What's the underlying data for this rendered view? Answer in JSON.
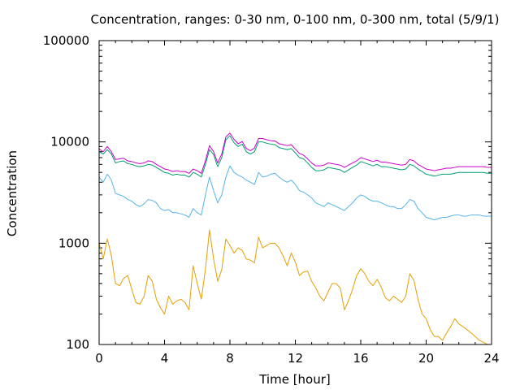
{
  "chart_data": {
    "type": "line",
    "title": "Concentration, ranges: 0-30 nm, 0-100 nm, 0-300 nm, total (5/9/1)",
    "xlabel": "Time [hour]",
    "ylabel": "Concentration",
    "xlim": [
      0,
      24
    ],
    "ylim": [
      100,
      100000
    ],
    "yscale": "log",
    "grid": false,
    "xticks": [
      0,
      4,
      8,
      12,
      16,
      20,
      24
    ],
    "xtick_labels": [
      "0",
      "4",
      "8",
      "12",
      "16",
      "20",
      "24"
    ],
    "yticks": [
      100,
      1000,
      10000,
      100000
    ],
    "ytick_labels": [
      "100",
      "1000",
      "10000",
      "100000"
    ],
    "x": [
      0,
      0.25,
      0.5,
      0.75,
      1,
      1.25,
      1.5,
      1.75,
      2,
      2.25,
      2.5,
      2.75,
      3,
      3.25,
      3.5,
      3.75,
      4,
      4.25,
      4.5,
      4.75,
      5,
      5.25,
      5.5,
      5.75,
      6,
      6.25,
      6.5,
      6.75,
      7,
      7.25,
      7.5,
      7.75,
      8,
      8.25,
      8.5,
      8.75,
      9,
      9.25,
      9.5,
      9.75,
      10,
      10.25,
      10.5,
      10.75,
      11,
      11.25,
      11.5,
      11.75,
      12,
      12.25,
      12.5,
      12.75,
      13,
      13.25,
      13.5,
      13.75,
      14,
      14.25,
      14.5,
      14.75,
      15,
      15.25,
      15.5,
      15.75,
      16,
      16.25,
      16.5,
      16.75,
      17,
      17.25,
      17.5,
      17.75,
      18,
      18.25,
      18.5,
      18.75,
      19,
      19.25,
      19.5,
      19.75,
      20,
      20.25,
      20.5,
      20.75,
      21,
      21.25,
      21.5,
      21.75,
      22,
      22.25,
      22.5,
      22.75,
      23,
      23.25,
      23.5,
      23.75,
      24
    ],
    "series": [
      {
        "color": "#e69f00",
        "values": [
          1000,
          700,
          1100,
          750,
          400,
          380,
          450,
          480,
          350,
          260,
          250,
          300,
          480,
          420,
          280,
          230,
          200,
          300,
          250,
          270,
          280,
          260,
          220,
          600,
          400,
          280,
          550,
          1350,
          700,
          420,
          550,
          1100,
          950,
          800,
          900,
          850,
          700,
          680,
          640,
          1150,
          900,
          950,
          1000,
          1000,
          900,
          750,
          600,
          800,
          650,
          480,
          520,
          530,
          420,
          360,
          300,
          270,
          330,
          400,
          400,
          360,
          220,
          270,
          350,
          480,
          560,
          500,
          420,
          380,
          440,
          370,
          290,
          270,
          300,
          280,
          260,
          300,
          500,
          430,
          280,
          200,
          180,
          140,
          120,
          120,
          110,
          130,
          150,
          180,
          160,
          150,
          140,
          130,
          120,
          110,
          105,
          100,
          100
        ]
      },
      {
        "color": "#56b4e9",
        "values": [
          4500,
          4000,
          4800,
          4200,
          3100,
          3000,
          2900,
          2700,
          2600,
          2400,
          2300,
          2450,
          2700,
          2650,
          2500,
          2200,
          2100,
          2150,
          2000,
          2000,
          1950,
          1900,
          1800,
          2200,
          2000,
          1900,
          3000,
          4500,
          3300,
          2500,
          3000,
          4500,
          5800,
          5000,
          4700,
          4500,
          4200,
          4000,
          3800,
          5000,
          4500,
          4600,
          4800,
          4900,
          4500,
          4200,
          4000,
          4200,
          3800,
          3300,
          3200,
          3000,
          2800,
          2500,
          2400,
          2300,
          2500,
          2400,
          2300,
          2200,
          2100,
          2300,
          2500,
          2800,
          3000,
          2900,
          2700,
          2600,
          2600,
          2500,
          2400,
          2300,
          2300,
          2200,
          2200,
          2400,
          2700,
          2600,
          2200,
          2000,
          1800,
          1750,
          1700,
          1750,
          1800,
          1800,
          1850,
          1900,
          1900,
          1850,
          1850,
          1900,
          1900,
          1900,
          1850,
          1850,
          1850
        ]
      },
      {
        "color": "#009e73",
        "values": [
          8000,
          7600,
          8400,
          7600,
          6200,
          6400,
          6500,
          6100,
          6000,
          5800,
          5700,
          5800,
          6000,
          5900,
          5600,
          5300,
          5000,
          4900,
          4700,
          4800,
          4700,
          4700,
          4500,
          5000,
          4800,
          4500,
          6000,
          8400,
          7500,
          5700,
          7000,
          10500,
          11500,
          9800,
          9000,
          9500,
          8000,
          7600,
          8000,
          10000,
          10000,
          9700,
          9500,
          9400,
          8800,
          8600,
          8400,
          8600,
          7800,
          7000,
          6800,
          6200,
          5600,
          5200,
          5200,
          5300,
          5600,
          5500,
          5400,
          5300,
          5000,
          5300,
          5600,
          5900,
          6400,
          6200,
          6000,
          5800,
          6000,
          5700,
          5700,
          5600,
          5500,
          5400,
          5300,
          5400,
          6000,
          5800,
          5400,
          5100,
          4800,
          4700,
          4600,
          4700,
          4800,
          4800,
          4800,
          4900,
          5000,
          5000,
          5000,
          5000,
          5000,
          5000,
          5000,
          4900,
          4900
        ]
      },
      {
        "color": "#cc00cc",
        "values": [
          8500,
          8000,
          9000,
          8000,
          6700,
          6800,
          6900,
          6500,
          6400,
          6200,
          6100,
          6200,
          6500,
          6400,
          6000,
          5700,
          5400,
          5300,
          5100,
          5200,
          5100,
          5100,
          4900,
          5400,
          5200,
          4900,
          6500,
          9200,
          8000,
          6200,
          7600,
          11200,
          12200,
          10600,
          9600,
          10100,
          8600,
          8200,
          8700,
          10800,
          10800,
          10500,
          10300,
          10200,
          9600,
          9400,
          9200,
          9400,
          8500,
          7700,
          7400,
          6800,
          6200,
          5800,
          5800,
          5900,
          6200,
          6100,
          6000,
          5900,
          5600,
          5900,
          6200,
          6500,
          7000,
          6800,
          6600,
          6400,
          6600,
          6300,
          6300,
          6200,
          6100,
          6000,
          5900,
          6000,
          6700,
          6500,
          6000,
          5700,
          5400,
          5300,
          5200,
          5300,
          5400,
          5500,
          5500,
          5600,
          5700,
          5700,
          5700,
          5700,
          5700,
          5700,
          5700,
          5600,
          5600
        ]
      }
    ]
  }
}
